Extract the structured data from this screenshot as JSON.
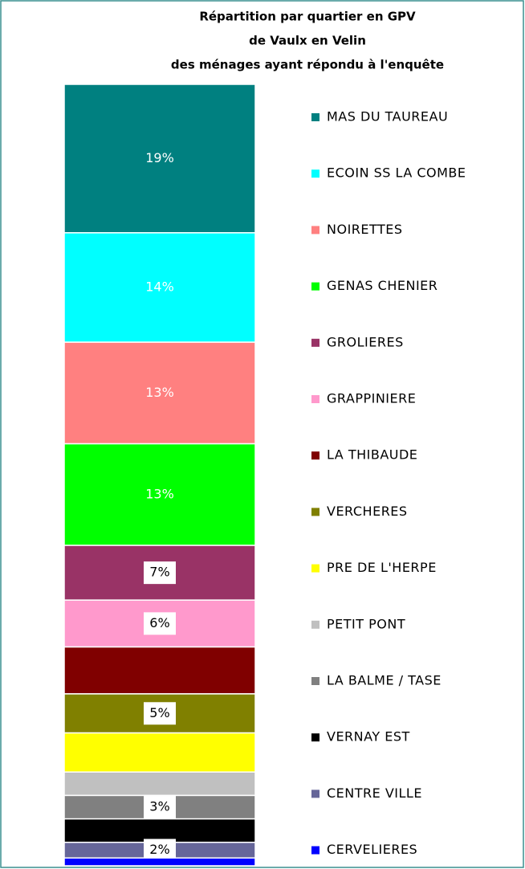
{
  "chart_data": {
    "type": "stacked_bar",
    "title": [
      "Répartition  par quartier en GPV",
      "de Vaulx en Velin",
      "des ménages ayant répondu à l'enquête"
    ],
    "ylim": [
      0,
      100
    ],
    "series": [
      {
        "name": "MAS DU TAUREAU",
        "color": "#008080",
        "values": [
          19
        ],
        "value_labels": [
          "19%"
        ]
      },
      {
        "name": "ECOIN SS LA COMBE",
        "color": "#00ffff",
        "values": [
          14
        ],
        "value_labels": [
          "14%"
        ]
      },
      {
        "name": "NOIRETTES",
        "color": "#ff8080",
        "values": [
          13
        ],
        "value_labels": [
          "13%"
        ]
      },
      {
        "name": "GENAS CHENIER",
        "color": "#00ff00",
        "values": [
          13
        ],
        "value_labels": [
          "13%"
        ]
      },
      {
        "name": "GROLIERES",
        "color": "#993366",
        "values": [
          7
        ],
        "value_labels": [
          "7%"
        ]
      },
      {
        "name": "GRAPPINIERE",
        "color": "#ff99cc",
        "values": [
          6
        ],
        "value_labels": [
          "6%"
        ]
      },
      {
        "name": "LA THIBAUDE",
        "color": "#800000",
        "values": [
          6
        ],
        "value_labels": [
          null
        ]
      },
      {
        "name": "VERCHERES",
        "color": "#808000",
        "values": [
          5
        ],
        "value_labels": [
          "5%"
        ]
      },
      {
        "name": "PRE DE L'HERPE",
        "color": "#ffff00",
        "values": [
          5
        ],
        "value_labels": [
          null
        ]
      },
      {
        "name": "PETIT PONT",
        "color": "#c0c0c0",
        "values": [
          3
        ],
        "value_labels": [
          null
        ]
      },
      {
        "name": "LA BALME / TASE",
        "color": "#808080",
        "values": [
          3
        ],
        "value_labels": [
          "3%"
        ]
      },
      {
        "name": "VERNAY EST",
        "color": "#000000",
        "values": [
          3
        ],
        "value_labels": [
          null
        ]
      },
      {
        "name": "CENTRE VILLE",
        "color": "#666699",
        "values": [
          2
        ],
        "value_labels": [
          "2%"
        ]
      },
      {
        "name": "CERVELIERES",
        "color": "#0000ff",
        "values": [
          1
        ],
        "value_labels": [
          null
        ]
      }
    ]
  }
}
